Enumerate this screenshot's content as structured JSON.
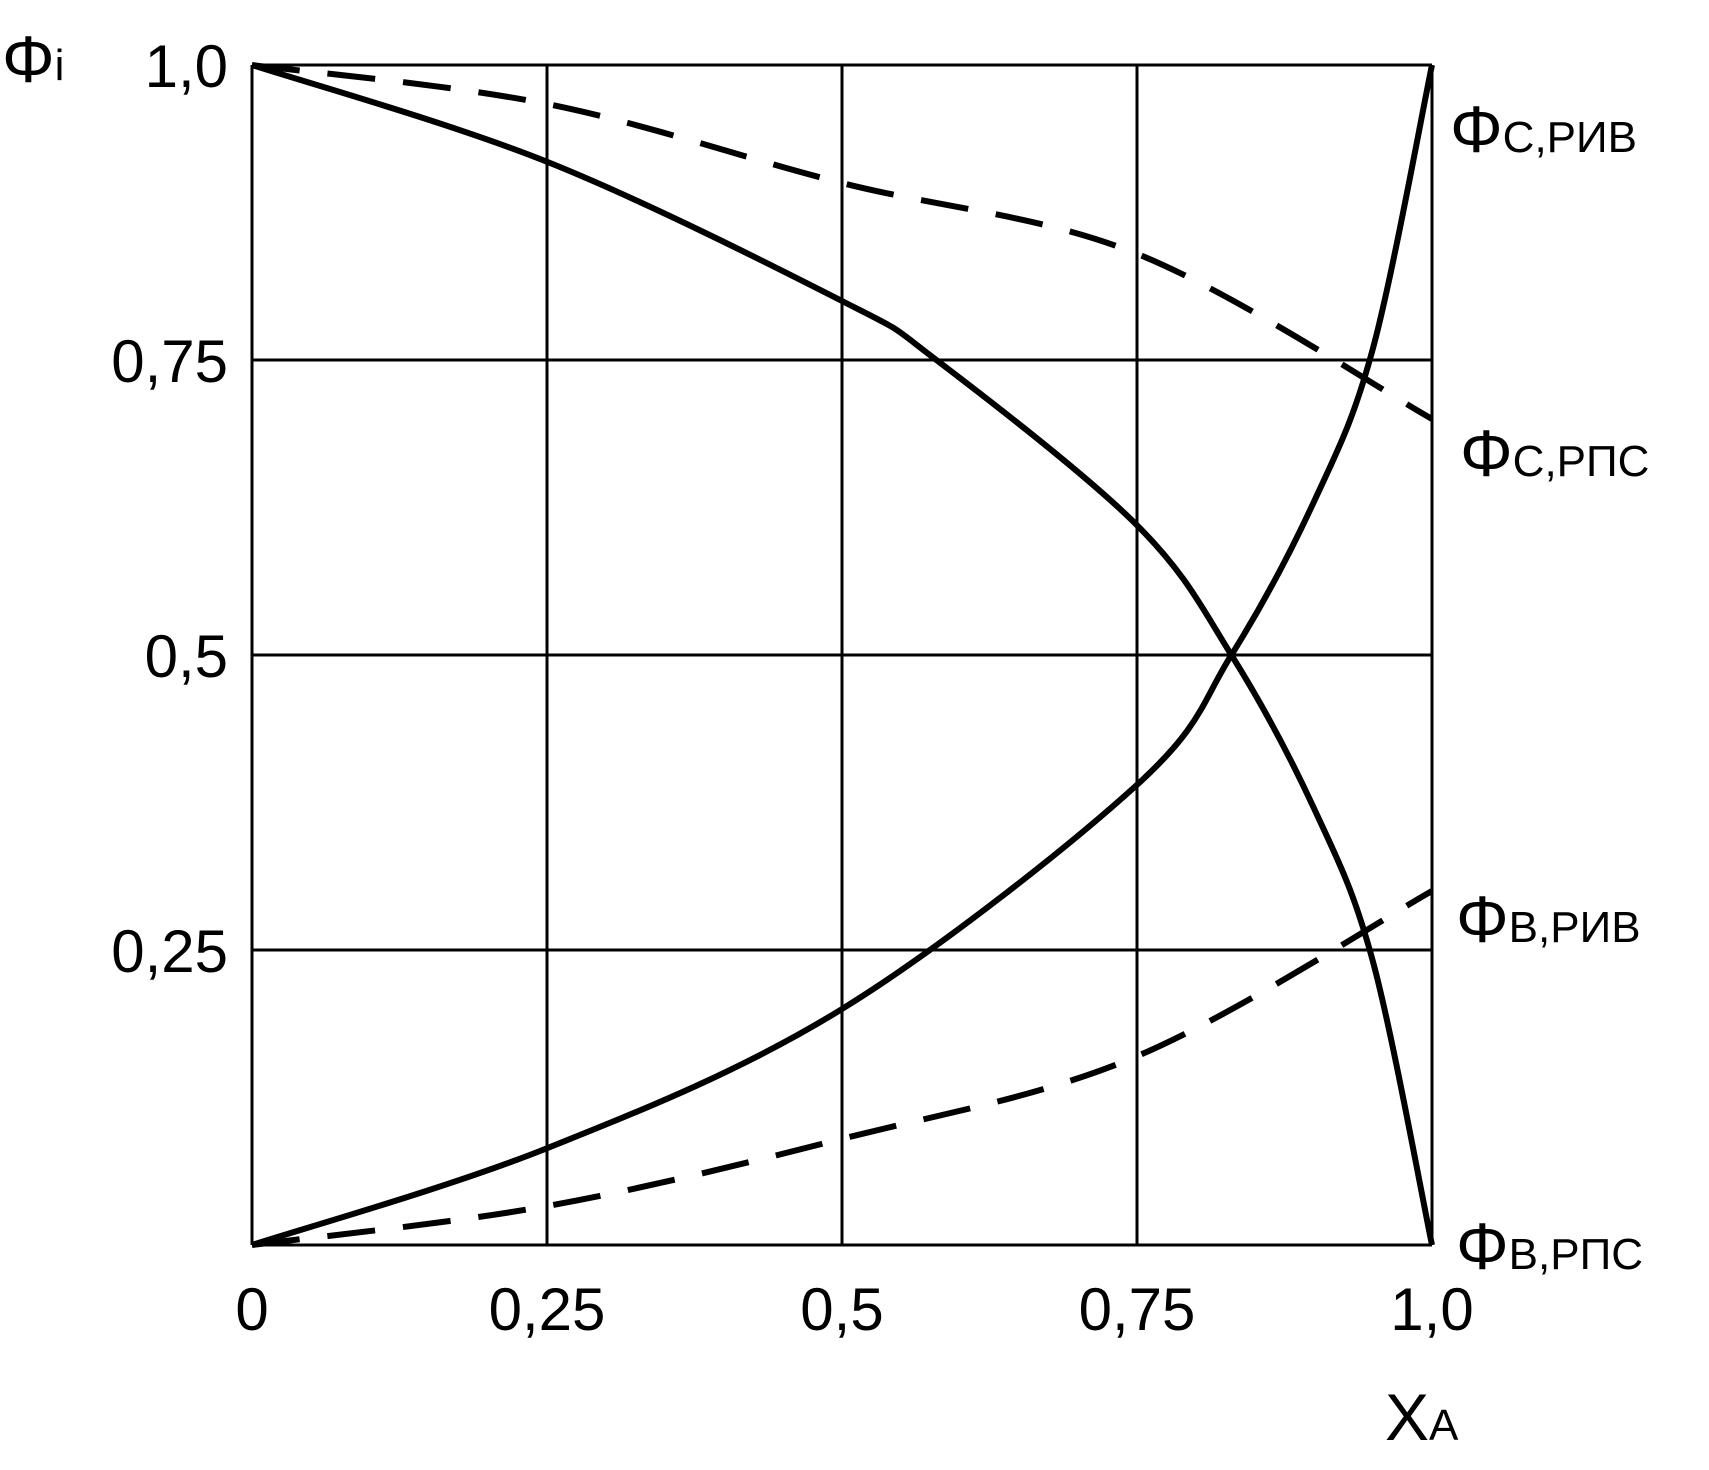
{
  "chart_data": {
    "type": "line",
    "y_axis": {
      "symbol": "Φ",
      "subscript": "i",
      "ticks": [
        "1,0",
        "0,75",
        "0,5",
        "0,25"
      ],
      "tick_values": [
        1.0,
        0.75,
        0.5,
        0.25
      ],
      "ylim": [
        0,
        1
      ]
    },
    "x_axis": {
      "symbol": "X",
      "subscript": "A",
      "ticks": [
        "0",
        "0,25",
        "0,5",
        "0,75",
        "1,0"
      ],
      "tick_values": [
        0,
        0.25,
        0.5,
        0.75,
        1.0
      ],
      "xlim": [
        0,
        1
      ]
    },
    "grid": true,
    "series": [
      {
        "name": "Φ",
        "sub": "C,РИВ",
        "style": "solid",
        "x": [
          0,
          0.25,
          0.5,
          0.75,
          0.83,
          0.9,
          0.95,
          1.0
        ],
        "y": [
          0,
          0.082,
          0.2,
          0.39,
          0.5,
          0.63,
          0.76,
          1.0
        ]
      },
      {
        "name": "Φ",
        "sub": "C,РПС",
        "style": "dashed",
        "x": [
          0,
          0.25,
          0.5,
          0.75,
          1.0
        ],
        "y": [
          1.0,
          0.967,
          0.9,
          0.84,
          0.7
        ]
      },
      {
        "name": "Φ",
        "sub": "B,РИВ",
        "style": "dashed",
        "x": [
          0,
          0.25,
          0.5,
          0.75,
          1.0
        ],
        "y": [
          0,
          0.033,
          0.09,
          0.16,
          0.3
        ]
      },
      {
        "name": "Φ",
        "sub": "B,РПС",
        "style": "solid",
        "x": [
          0,
          0.25,
          0.5,
          0.58,
          0.75,
          0.83,
          0.9,
          0.95,
          1.0
        ],
        "y": [
          1.0,
          0.918,
          0.8,
          0.75,
          0.61,
          0.5,
          0.37,
          0.24,
          0
        ]
      }
    ]
  },
  "colors": {
    "ink": "#000000",
    "background": "#ffffff"
  }
}
